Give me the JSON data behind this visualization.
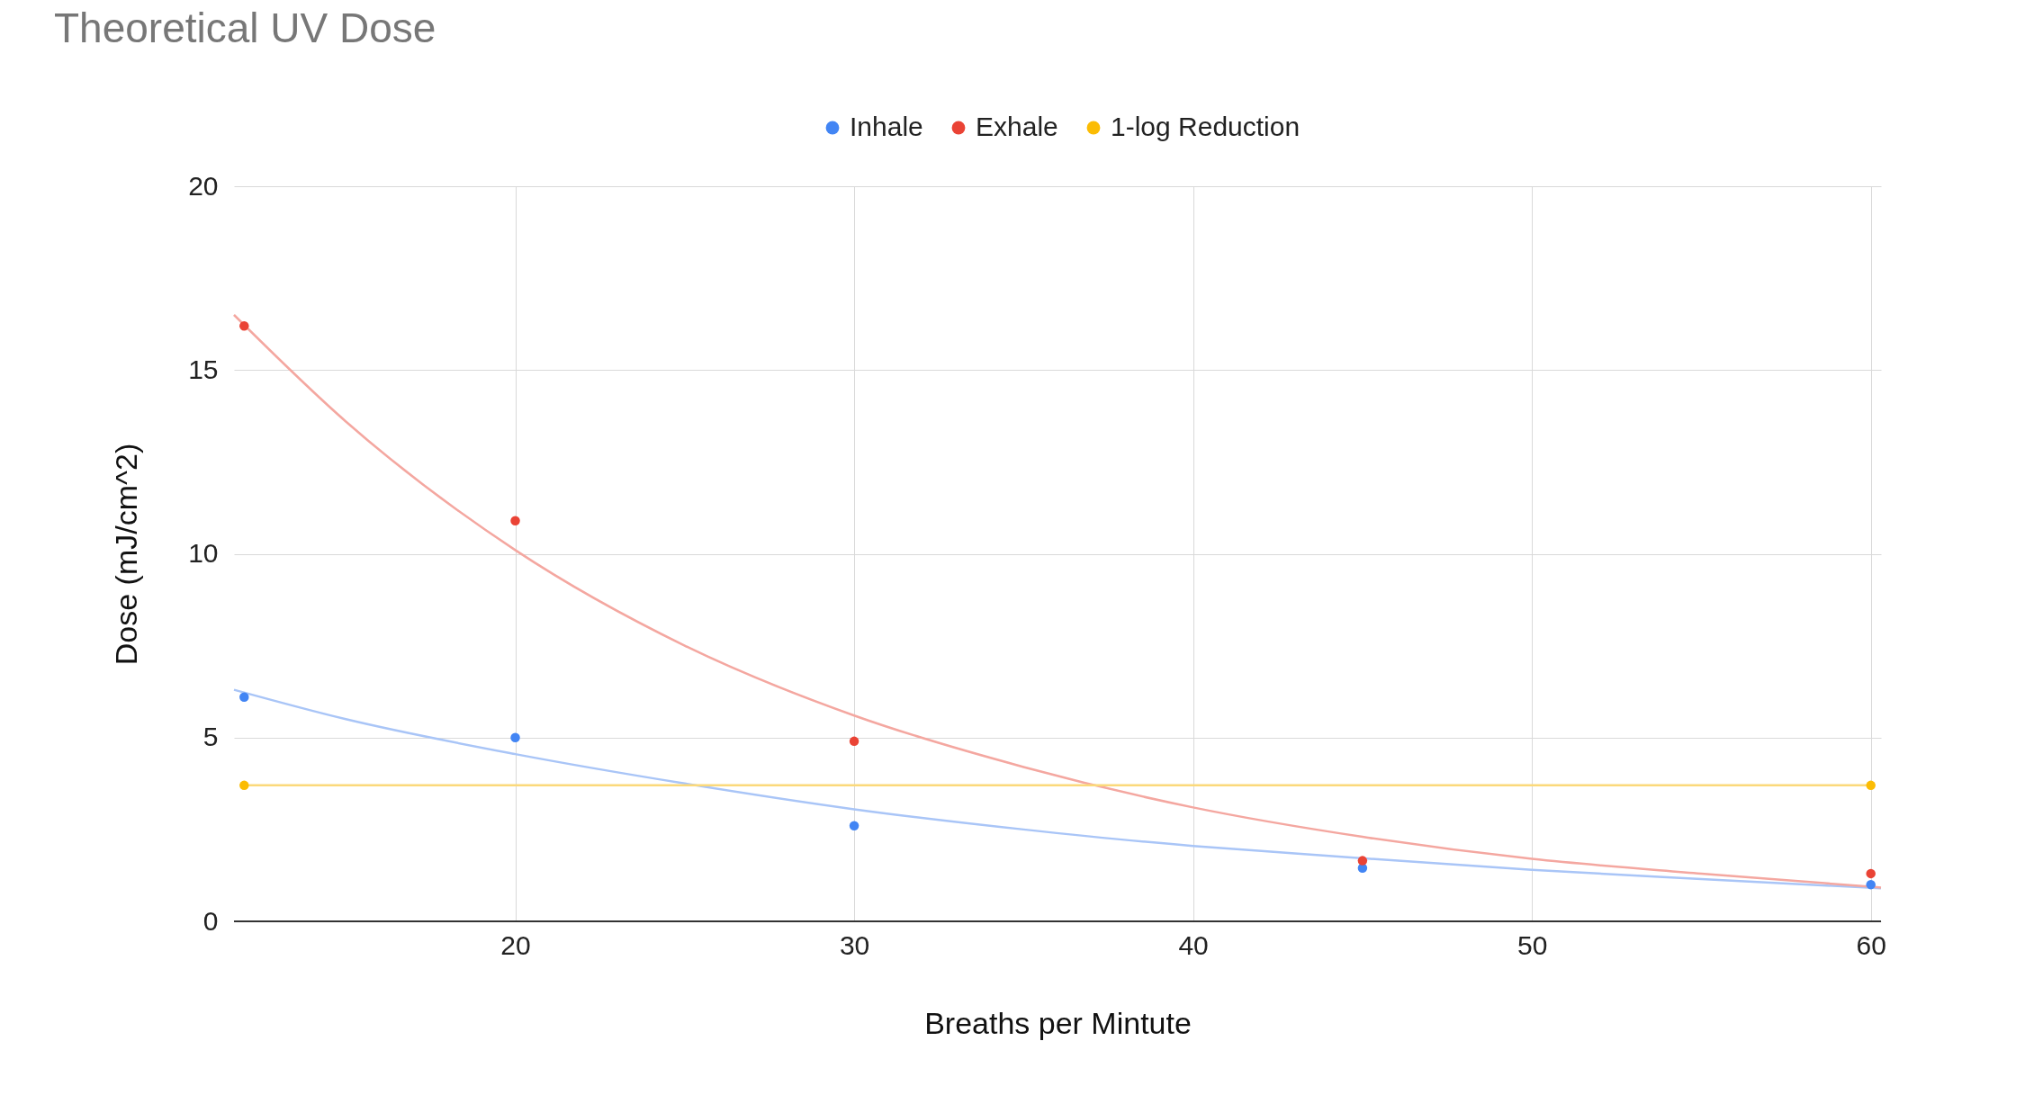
{
  "chart_data": {
    "type": "scatter",
    "title": "Theoretical UV Dose",
    "xlabel": "Breaths per Mintute",
    "ylabel": "Dose (mJ/cm^2)",
    "xlim": [
      11.7,
      60.3
    ],
    "ylim": [
      0,
      20
    ],
    "xticks": [
      20,
      30,
      40,
      50,
      60
    ],
    "yticks": [
      0,
      5,
      10,
      15,
      20
    ],
    "grid": true,
    "legend": "top",
    "series": [
      {
        "name": "Inhale",
        "color": "#4285f4",
        "marker": "circle",
        "x": [
          12,
          20,
          30,
          45,
          60
        ],
        "values": [
          6.1,
          5.0,
          2.6,
          1.45,
          1.0
        ]
      },
      {
        "name": "Exhale",
        "color": "#ea4335",
        "marker": "circle",
        "x": [
          12,
          20,
          30,
          45,
          60
        ],
        "values": [
          16.2,
          10.9,
          4.9,
          1.65,
          1.3
        ]
      },
      {
        "name": "1-log Reduction",
        "color": "#fbbc04",
        "marker": "circle",
        "x": [
          12,
          60
        ],
        "values": [
          3.7,
          3.7
        ]
      },
      {
        "type": "line",
        "color": "#a9c5f7",
        "x": [
          11.7,
          15,
          20,
          25,
          30,
          35,
          40,
          43,
          50,
          55,
          60.3
        ],
        "values": [
          6.3,
          5.5,
          4.55,
          3.75,
          3.05,
          2.5,
          2.05,
          1.85,
          1.4,
          1.15,
          0.9
        ]
      },
      {
        "type": "line",
        "color": "#f4a7a0",
        "x": [
          11.7,
          15,
          20,
          25,
          30,
          35,
          40,
          45,
          50,
          55,
          60.3
        ],
        "values": [
          16.5,
          13.6,
          10.1,
          7.5,
          5.6,
          4.2,
          3.1,
          2.3,
          1.7,
          1.3,
          0.92
        ]
      },
      {
        "type": "line",
        "color": "#fbd97a",
        "x": [
          12,
          60
        ],
        "values": [
          3.7,
          3.7
        ]
      }
    ]
  }
}
